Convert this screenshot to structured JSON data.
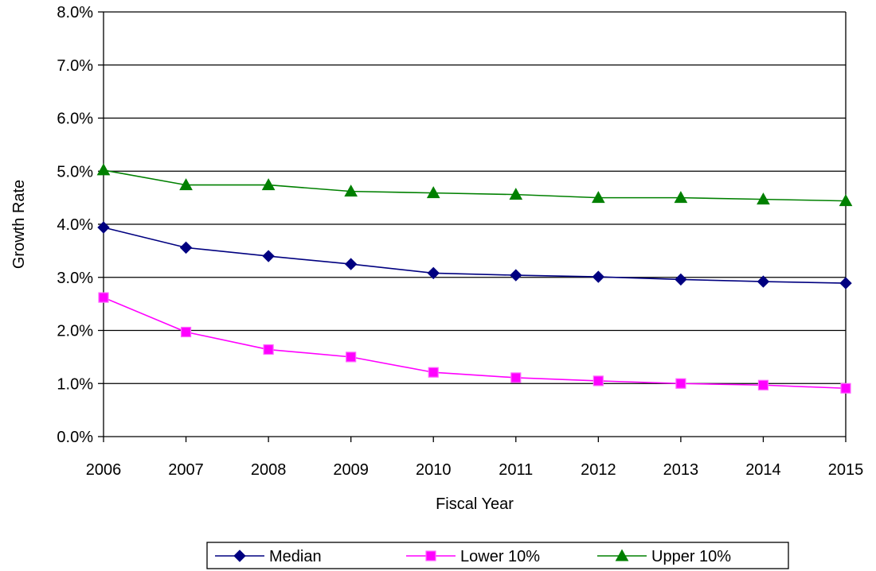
{
  "chart_data": {
    "type": "line",
    "title": "",
    "xlabel": "Fiscal Year",
    "ylabel": "Growth Rate",
    "x": [
      "2006",
      "2007",
      "2008",
      "2009",
      "2010",
      "2011",
      "2012",
      "2013",
      "2014",
      "2015"
    ],
    "ylim": [
      0,
      8
    ],
    "yticks": [
      "0.0%",
      "1.0%",
      "2.0%",
      "3.0%",
      "4.0%",
      "5.0%",
      "6.0%",
      "7.0%",
      "8.0%"
    ],
    "grid": "horizontal",
    "legend": "bottom",
    "series": [
      {
        "name": "Median",
        "color": "#000080",
        "marker": "diamond",
        "values": [
          3.94,
          3.56,
          3.4,
          3.25,
          3.08,
          3.04,
          3.01,
          2.96,
          2.92,
          2.89
        ]
      },
      {
        "name": "Lower 10%",
        "color": "#ff00ff",
        "marker": "square",
        "values": [
          2.62,
          1.97,
          1.64,
          1.5,
          1.21,
          1.11,
          1.05,
          1.0,
          0.97,
          0.91
        ]
      },
      {
        "name": "Upper 10%",
        "color": "#008000",
        "marker": "triangle",
        "values": [
          5.02,
          4.74,
          4.74,
          4.62,
          4.59,
          4.56,
          4.5,
          4.5,
          4.47,
          4.44
        ]
      }
    ]
  }
}
